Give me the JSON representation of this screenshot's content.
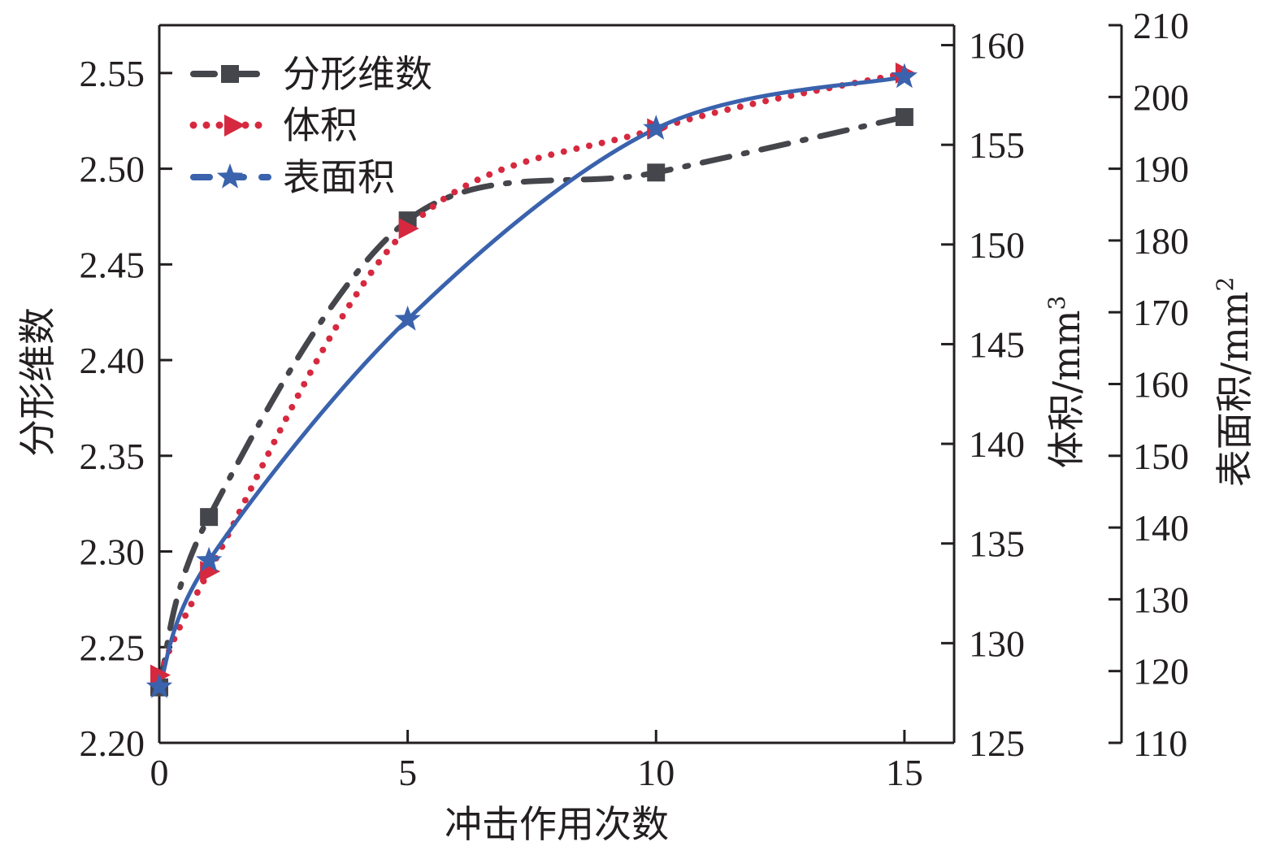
{
  "chart_data": {
    "type": "line",
    "xlabel": "冲击作用次数",
    "xlim": [
      0,
      16
    ],
    "x_ticks": [
      "0",
      "5",
      "10",
      "15"
    ],
    "x": [
      0,
      1,
      5,
      10,
      15
    ],
    "axes": [
      {
        "id": "left",
        "label": "分形维数",
        "ylim": [
          2.2,
          2.575
        ],
        "ticks": [
          "2.20",
          "2.25",
          "2.30",
          "2.35",
          "2.40",
          "2.45",
          "2.50",
          "2.55"
        ]
      },
      {
        "id": "right1",
        "label": "体积/mm",
        "label_sup": "3",
        "ylim": [
          125,
          161
        ],
        "ticks": [
          "125",
          "130",
          "135",
          "140",
          "145",
          "150",
          "155",
          "160"
        ]
      },
      {
        "id": "right2",
        "label": "表面积/mm",
        "label_sup": "2",
        "ylim": [
          110,
          210
        ],
        "ticks": [
          "110",
          "120",
          "130",
          "140",
          "150",
          "160",
          "170",
          "180",
          "190",
          "200",
          "210"
        ]
      }
    ],
    "series": [
      {
        "name": "分形维数",
        "axis": "left",
        "marker": "square",
        "line": "dash-dot",
        "color": "#45464b",
        "values": [
          2.229,
          2.318,
          2.473,
          2.498,
          2.527
        ]
      },
      {
        "name": "体积",
        "axis": "right1",
        "marker": "triangle-right",
        "line": "dotted",
        "color": "#d6293f",
        "values": [
          128.4,
          133.6,
          150.8,
          155.8,
          158.6
        ]
      },
      {
        "name": "表面积",
        "axis": "right2",
        "marker": "star",
        "line": "solid",
        "color": "#3a62ad",
        "values": [
          117.8,
          135.4,
          169.0,
          195.6,
          202.8
        ]
      }
    ],
    "legend": {
      "position": "top-left",
      "entries": [
        "分形维数",
        "体积",
        "表面积"
      ]
    },
    "grid": false
  }
}
